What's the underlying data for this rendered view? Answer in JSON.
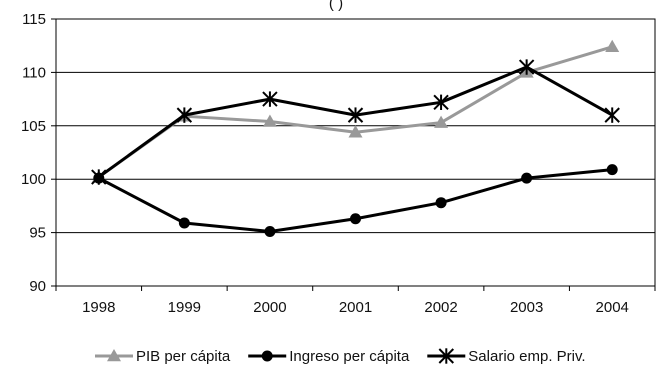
{
  "chart_data": {
    "type": "line",
    "title_fragment": "(                              )",
    "categories": [
      "1998",
      "1999",
      "2000",
      "2001",
      "2002",
      "2003",
      "2004"
    ],
    "ylim": [
      90,
      115
    ],
    "yticks": [
      90,
      95,
      100,
      105,
      110,
      115
    ],
    "grid": "horizontal",
    "legend_position": "bottom",
    "series": [
      {
        "name": "PIB per cápita",
        "color": "#999999",
        "marker": "triangle",
        "values": [
          100.2,
          105.9,
          105.4,
          104.4,
          105.3,
          110.0,
          112.4
        ]
      },
      {
        "name": "Ingreso per cápita",
        "color": "#000000",
        "marker": "circle",
        "values": [
          100.1,
          95.9,
          95.1,
          96.3,
          97.8,
          100.1,
          100.9
        ]
      },
      {
        "name": "Salario emp. Priv.",
        "color": "#000000",
        "marker": "asterisk",
        "values": [
          100.2,
          106.0,
          107.5,
          106.0,
          107.2,
          110.5,
          106.0
        ]
      }
    ]
  }
}
